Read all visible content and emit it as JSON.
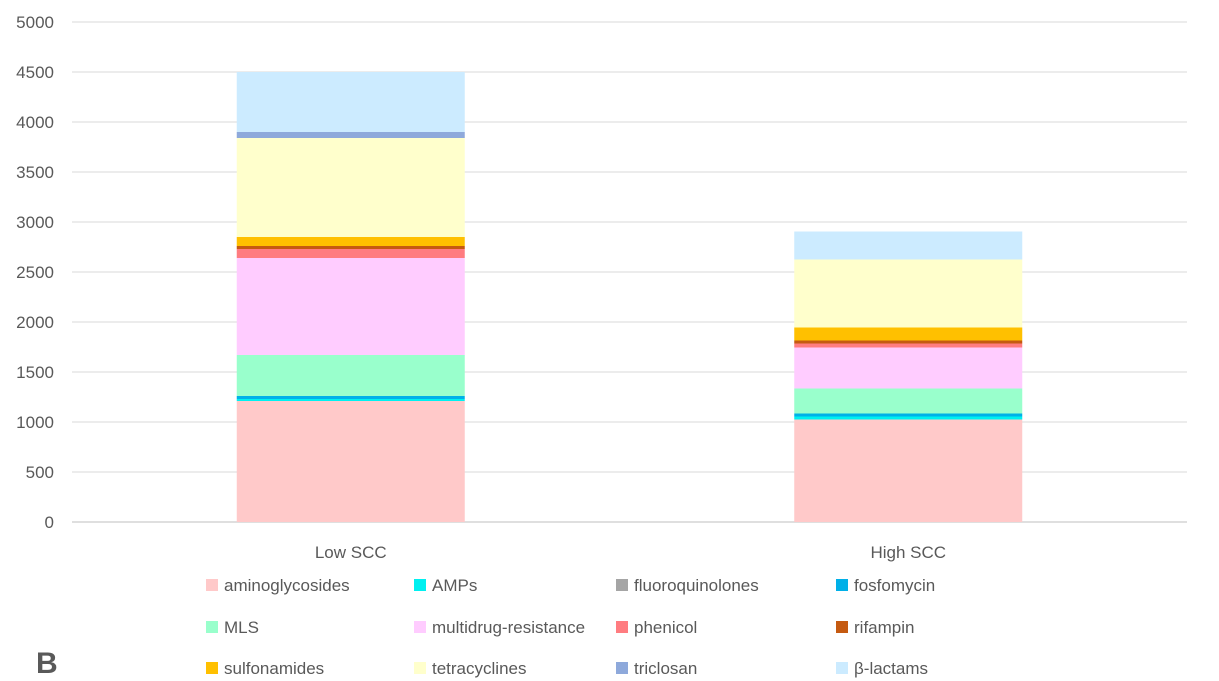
{
  "panel_label": "B",
  "chart_data": {
    "type": "bar",
    "stacked": true,
    "title": "",
    "xlabel": "",
    "ylabel": "",
    "ylim": [
      0,
      5000
    ],
    "yticks": [
      0,
      500,
      1000,
      1500,
      2000,
      2500,
      3000,
      3500,
      4000,
      4500,
      5000
    ],
    "grid": true,
    "legend_position": "bottom",
    "categories": [
      "Low SCC",
      "High SCC"
    ],
    "series": [
      {
        "name": "aminoglycosides",
        "color": "#FFC9C9",
        "values": [
          1210,
          1025
        ]
      },
      {
        "name": "AMPs",
        "color": "#00F0F0",
        "values": [
          20,
          30
        ]
      },
      {
        "name": "fluoroquinolones",
        "color": "#A5A5A5",
        "values": [
          0,
          0
        ]
      },
      {
        "name": "fosfomycin",
        "color": "#00B0E8",
        "values": [
          30,
          30
        ]
      },
      {
        "name": "MLS",
        "color": "#99FFCC",
        "values": [
          410,
          250
        ]
      },
      {
        "name": "multidrug-resistance",
        "color": "#FFCCFF",
        "values": [
          970,
          410
        ]
      },
      {
        "name": "phenicol",
        "color": "#FF7C80",
        "values": [
          90,
          40
        ]
      },
      {
        "name": "rifampin",
        "color": "#C55A11",
        "values": [
          30,
          30
        ]
      },
      {
        "name": "sulfonamides",
        "color": "#FFC000",
        "values": [
          90,
          130
        ]
      },
      {
        "name": "tetracyclines",
        "color": "#FFFFCC",
        "values": [
          990,
          680
        ]
      },
      {
        "name": "triclosan",
        "color": "#8EA9DB",
        "values": [
          60,
          0
        ]
      },
      {
        "name": "β-lactams",
        "color": "#CCEBFF",
        "values": [
          600,
          280
        ]
      }
    ]
  }
}
